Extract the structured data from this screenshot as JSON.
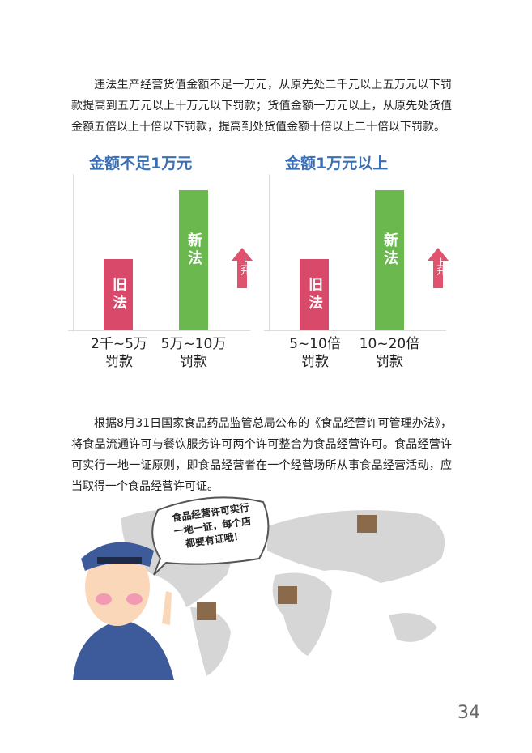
{
  "paragraphs": [
    "违法生产经营货值金额不足一万元，从原先处二千元以上五万元以下罚款提高到五万元以上十万元以下罚款；货值金额一万元以上，从原先处货值金额五倍以上十倍以下罚款，提高到处货值金额十倍以上二十倍以下罚款。",
    "根据8月31日国家食品药品监管总局公布的《食品经营许可管理办法》，将食品流通许可与餐饮服务许可两个许可整合为食品经营许可。食品经营许可实行一地一证原则，即食品经营者在一个经营场所从事食品经营活动，应当取得一个食品经营许可证。"
  ],
  "comparisons": [
    {
      "title": "金额不足1万元",
      "old_label": "旧法",
      "new_label": "新法",
      "rise_label": "上升",
      "old_caption": [
        "2千~5万",
        "罚款"
      ],
      "new_caption": [
        "5万~10万",
        "罚款"
      ]
    },
    {
      "title": "金额1万元以上",
      "old_label": "旧法",
      "new_label": "新法",
      "rise_label": "上升",
      "old_caption": [
        "5~10倍",
        "罚款"
      ],
      "new_caption": [
        "10~20倍",
        "罚款"
      ]
    }
  ],
  "bubble": [
    "食品经营许可实行",
    "一地一证，每个店",
    "都要有证哦！"
  ],
  "page_number": "34"
}
